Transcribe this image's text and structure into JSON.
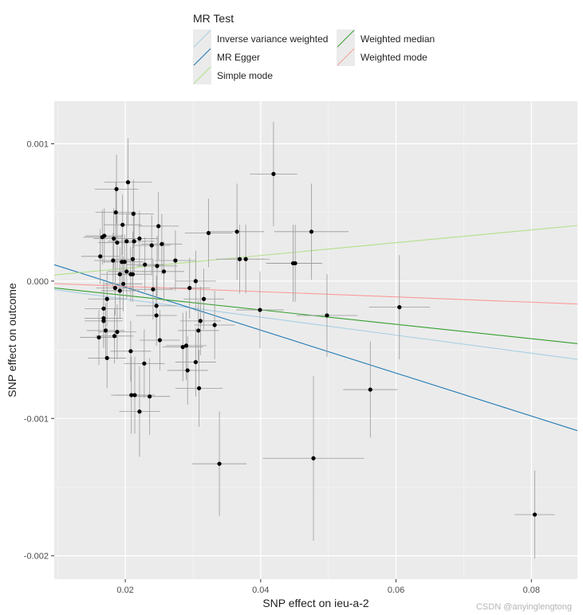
{
  "chart_data": {
    "type": "scatter",
    "title": "",
    "xlabel": "SNP effect on ieu-a-2",
    "ylabel": "SNP effect on outcome",
    "xlim": [
      0.0095,
      0.0868
    ],
    "ylim": [
      -0.00217,
      0.00131
    ],
    "x_ticks": [
      0.02,
      0.04,
      0.06,
      0.08
    ],
    "x_tick_labels": [
      "0.02",
      "0.04",
      "0.06",
      "0.08"
    ],
    "y_ticks": [
      0.001,
      0.0,
      -0.001,
      -0.002
    ],
    "y_tick_labels": [
      "0.001",
      "0.000",
      "-0.001",
      "-0.002"
    ],
    "grid": true,
    "legend": {
      "title": "MR Test",
      "position": "top",
      "entries": [
        {
          "label": "Inverse variance weighted",
          "color": "#a6cee3"
        },
        {
          "label": "MR Egger",
          "color": "#1f78b4"
        },
        {
          "label": "Simple mode",
          "color": "#b2df8a"
        },
        {
          "label": "Weighted median",
          "color": "#33a02c"
        },
        {
          "label": "Weighted mode",
          "color": "#fb9a99"
        }
      ]
    },
    "lines": [
      {
        "name": "Inverse variance weighted",
        "color": "#a6cee3",
        "intercept": 0.0,
        "slope": -0.00656
      },
      {
        "name": "MR Egger",
        "color": "#1f78b4",
        "intercept": 0.000268,
        "slope": -0.01563
      },
      {
        "name": "Simple mode",
        "color": "#b2df8a",
        "intercept": 0.0,
        "slope": 0.00466
      },
      {
        "name": "Weighted median",
        "color": "#33a02c",
        "intercept": 0.0,
        "slope": -0.00524
      },
      {
        "name": "Weighted mode",
        "color": "#fb9a99",
        "intercept": 0.0,
        "slope": -0.00192
      }
    ],
    "points": [
      {
        "x": 0.0187,
        "y": 0.00067,
        "xse": 0.0032,
        "yse": 0.00025
      },
      {
        "x": 0.0204,
        "y": 0.00072,
        "xse": 0.0035,
        "yse": 0.00032
      },
      {
        "x": 0.0186,
        "y": 0.0005,
        "xse": 0.003,
        "yse": 0.00022
      },
      {
        "x": 0.0212,
        "y": 0.00049,
        "xse": 0.003,
        "yse": 0.00025
      },
      {
        "x": 0.0196,
        "y": 0.00041,
        "xse": 0.0028,
        "yse": 0.00022
      },
      {
        "x": 0.0249,
        "y": 0.0004,
        "xse": 0.003,
        "yse": 0.00025
      },
      {
        "x": 0.0166,
        "y": 0.00032,
        "xse": 0.0028,
        "yse": 0.0002
      },
      {
        "x": 0.0169,
        "y": 0.00033,
        "xse": 0.0028,
        "yse": 0.0002
      },
      {
        "x": 0.0183,
        "y": 0.00031,
        "xse": 0.003,
        "yse": 0.00022
      },
      {
        "x": 0.0188,
        "y": 0.00028,
        "xse": 0.0028,
        "yse": 0.0002
      },
      {
        "x": 0.0202,
        "y": 0.00029,
        "xse": 0.0028,
        "yse": 0.0002
      },
      {
        "x": 0.0221,
        "y": 0.00031,
        "xse": 0.0028,
        "yse": 0.0002
      },
      {
        "x": 0.0213,
        "y": 0.00029,
        "xse": 0.003,
        "yse": 0.00022
      },
      {
        "x": 0.0239,
        "y": 0.00026,
        "xse": 0.0028,
        "yse": 0.00022
      },
      {
        "x": 0.0254,
        "y": 0.00027,
        "xse": 0.003,
        "yse": 0.00022
      },
      {
        "x": 0.0163,
        "y": 0.00018,
        "xse": 0.0028,
        "yse": 0.0002
      },
      {
        "x": 0.0182,
        "y": 0.00015,
        "xse": 0.0028,
        "yse": 0.0002
      },
      {
        "x": 0.0195,
        "y": 0.00014,
        "xse": 0.0028,
        "yse": 0.0002
      },
      {
        "x": 0.0199,
        "y": 0.00014,
        "xse": 0.0028,
        "yse": 0.0002
      },
      {
        "x": 0.0211,
        "y": 0.00016,
        "xse": 0.003,
        "yse": 0.0002
      },
      {
        "x": 0.0229,
        "y": 0.00012,
        "xse": 0.0028,
        "yse": 0.0002
      },
      {
        "x": 0.0247,
        "y": 0.00011,
        "xse": 0.003,
        "yse": 0.00022
      },
      {
        "x": 0.0274,
        "y": 0.00015,
        "xse": 0.003,
        "yse": 0.00022
      },
      {
        "x": 0.0202,
        "y": 7e-05,
        "xse": 0.0028,
        "yse": 0.0002
      },
      {
        "x": 0.0192,
        "y": 5e-05,
        "xse": 0.0028,
        "yse": 0.0002
      },
      {
        "x": 0.0208,
        "y": 5e-05,
        "xse": 0.0028,
        "yse": 0.0002
      },
      {
        "x": 0.0211,
        "y": 5e-05,
        "xse": 0.0028,
        "yse": 0.0002
      },
      {
        "x": 0.0257,
        "y": 7e-05,
        "xse": 0.003,
        "yse": 0.00022
      },
      {
        "x": 0.0304,
        "y": 0.0,
        "xse": 0.003,
        "yse": 0.00022
      },
      {
        "x": 0.0185,
        "y": -5e-05,
        "xse": 0.0028,
        "yse": 0.0002
      },
      {
        "x": 0.0197,
        "y": -2e-05,
        "xse": 0.0028,
        "yse": 0.0002
      },
      {
        "x": 0.0192,
        "y": -7e-05,
        "xse": 0.0028,
        "yse": 0.0002
      },
      {
        "x": 0.0241,
        "y": -6e-05,
        "xse": 0.003,
        "yse": 0.00022
      },
      {
        "x": 0.0295,
        "y": -5e-05,
        "xse": 0.003,
        "yse": 0.00022
      },
      {
        "x": 0.0323,
        "y": 0.00035,
        "xse": 0.0035,
        "yse": 0.00025
      },
      {
        "x": 0.0365,
        "y": 0.00036,
        "xse": 0.004,
        "yse": 0.00035
      },
      {
        "x": 0.0475,
        "y": 0.00036,
        "xse": 0.0055,
        "yse": 0.00035
      },
      {
        "x": 0.0369,
        "y": 0.00016,
        "xse": 0.0035,
        "yse": 0.00025
      },
      {
        "x": 0.0378,
        "y": 0.00016,
        "xse": 0.0035,
        "yse": 0.00025
      },
      {
        "x": 0.0448,
        "y": 0.00013,
        "xse": 0.004,
        "yse": 0.00028
      },
      {
        "x": 0.0451,
        "y": 0.00013,
        "xse": 0.004,
        "yse": 0.00028
      },
      {
        "x": 0.0419,
        "y": 0.00078,
        "xse": 0.0035,
        "yse": 0.00038
      },
      {
        "x": 0.0173,
        "y": -0.00013,
        "xse": 0.0028,
        "yse": 0.0002
      },
      {
        "x": 0.0168,
        "y": -0.0002,
        "xse": 0.0028,
        "yse": 0.0002
      },
      {
        "x": 0.0168,
        "y": -0.00027,
        "xse": 0.0028,
        "yse": 0.0002
      },
      {
        "x": 0.0168,
        "y": -0.00029,
        "xse": 0.0028,
        "yse": 0.0002
      },
      {
        "x": 0.0246,
        "y": -0.00018,
        "xse": 0.003,
        "yse": 0.00022
      },
      {
        "x": 0.0246,
        "y": -0.00025,
        "xse": 0.003,
        "yse": 0.00022
      },
      {
        "x": 0.0316,
        "y": -0.00013,
        "xse": 0.003,
        "yse": 0.00022
      },
      {
        "x": 0.0171,
        "y": -0.00036,
        "xse": 0.0028,
        "yse": 0.0002
      },
      {
        "x": 0.0161,
        "y": -0.00041,
        "xse": 0.0028,
        "yse": 0.0002
      },
      {
        "x": 0.0184,
        "y": -0.0004,
        "xse": 0.0028,
        "yse": 0.0002
      },
      {
        "x": 0.0188,
        "y": -0.00037,
        "xse": 0.0028,
        "yse": 0.0002
      },
      {
        "x": 0.0251,
        "y": -0.00043,
        "xse": 0.003,
        "yse": 0.00022
      },
      {
        "x": 0.0332,
        "y": -0.00032,
        "xse": 0.003,
        "yse": 0.00025
      },
      {
        "x": 0.0311,
        "y": -0.00029,
        "xse": 0.003,
        "yse": 0.00025
      },
      {
        "x": 0.0308,
        "y": -0.00036,
        "xse": 0.003,
        "yse": 0.00022
      },
      {
        "x": 0.0399,
        "y": -0.00021,
        "xse": 0.0035,
        "yse": 0.00028
      },
      {
        "x": 0.0498,
        "y": -0.00025,
        "xse": 0.0045,
        "yse": 0.0003
      },
      {
        "x": 0.0605,
        "y": -0.00019,
        "xse": 0.0045,
        "yse": 0.00038
      },
      {
        "x": 0.0173,
        "y": -0.00056,
        "xse": 0.0028,
        "yse": 0.00022
      },
      {
        "x": 0.0208,
        "y": -0.00051,
        "xse": 0.003,
        "yse": 0.00022
      },
      {
        "x": 0.0228,
        "y": -0.0006,
        "xse": 0.003,
        "yse": 0.00025
      },
      {
        "x": 0.0285,
        "y": -0.00048,
        "xse": 0.003,
        "yse": 0.00025
      },
      {
        "x": 0.029,
        "y": -0.00047,
        "xse": 0.003,
        "yse": 0.00025
      },
      {
        "x": 0.0304,
        "y": -0.00059,
        "xse": 0.003,
        "yse": 0.00025
      },
      {
        "x": 0.0292,
        "y": -0.00065,
        "xse": 0.003,
        "yse": 0.00025
      },
      {
        "x": 0.0209,
        "y": -0.00083,
        "xse": 0.003,
        "yse": 0.00028
      },
      {
        "x": 0.0214,
        "y": -0.00083,
        "xse": 0.003,
        "yse": 0.00028
      },
      {
        "x": 0.0236,
        "y": -0.00084,
        "xse": 0.003,
        "yse": 0.00028
      },
      {
        "x": 0.0309,
        "y": -0.00078,
        "xse": 0.0035,
        "yse": 0.00028
      },
      {
        "x": 0.0221,
        "y": -0.00095,
        "xse": 0.003,
        "yse": 0.00033
      },
      {
        "x": 0.0562,
        "y": -0.00079,
        "xse": 0.004,
        "yse": 0.00035
      },
      {
        "x": 0.0339,
        "y": -0.00133,
        "xse": 0.004,
        "yse": 0.00038
      },
      {
        "x": 0.0478,
        "y": -0.00129,
        "xse": 0.0075,
        "yse": 0.0006
      },
      {
        "x": 0.0805,
        "y": -0.0017,
        "xse": 0.003,
        "yse": 0.00032
      }
    ],
    "watermark": "CSDN @anyinglengtong"
  }
}
